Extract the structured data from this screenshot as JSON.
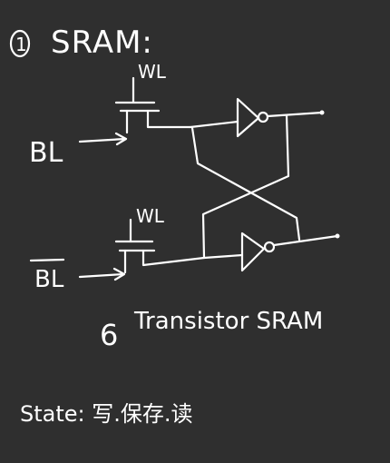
{
  "colors": {
    "background": "#2f2f2f",
    "ink": "#ffffff"
  },
  "diagram": {
    "heading_number": "1",
    "heading_text": "SRAM:",
    "top_wordline_label": "WL",
    "bottom_wordline_label": "WL",
    "bitline_label": "BL",
    "bitline_bar_label": "BL",
    "caption_number": "6",
    "caption_text": "Transistor SRAM",
    "state_text": "State: 写.保存.读"
  }
}
